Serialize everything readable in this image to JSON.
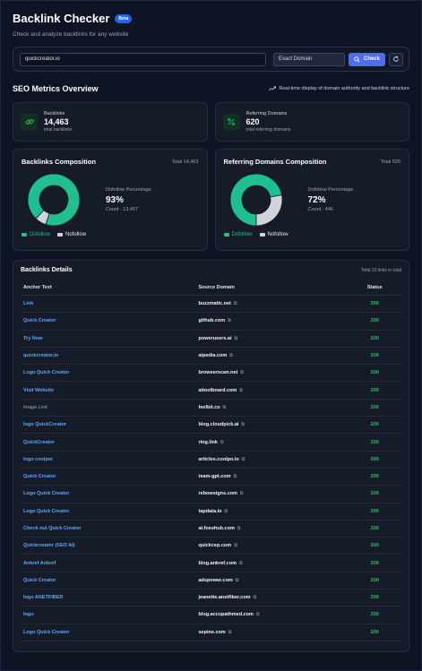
{
  "header": {
    "title": "Backlink Checker",
    "badge": "Beta",
    "subtitle": "Check and analyze backlinks for any website"
  },
  "search": {
    "url_value": "quickcreator.io",
    "mode_label": "Exact Domain",
    "check_label": "Check"
  },
  "overview": {
    "title": "SEO Metrics Overview",
    "note": "Real-time display of domain authority and backlink structure"
  },
  "metrics": [
    {
      "label": "Backlinks",
      "value": "14,463",
      "sub": "total backlinks",
      "icon": "link-icon"
    },
    {
      "label": "Referring Domains",
      "value": "620",
      "sub": "total referring domains",
      "icon": "percent-icon"
    }
  ],
  "charts": [
    {
      "title": "Backlinks Composition",
      "total": "Total 14,463",
      "pct_label": "Dofollow Percentage",
      "pct_value": "93%",
      "count": "Count : 13,457",
      "dofollow_fraction": 0.93
    },
    {
      "title": "Referring Domains Composition",
      "total": "Total 620",
      "pct_label": "Dofollow Percentage",
      "pct_value": "72%",
      "count": "Count : 446",
      "dofollow_fraction": 0.72
    }
  ],
  "legend": {
    "dofollow": "Dofollow",
    "nofollow": "Nofollow"
  },
  "colors": {
    "dofollow": "#1fbf8f",
    "nofollow": "#d1d5db",
    "accent": "#4f6bf0",
    "status": "#22c55e"
  },
  "details": {
    "title": "Backlinks Details",
    "total": "Total 20 links in total",
    "columns": [
      "Anchor Text",
      "Source Domain",
      "Status"
    ],
    "rows": [
      {
        "anchor": "Link",
        "domain": "buzzmatic.net",
        "status": "200"
      },
      {
        "anchor": "Quick Creator",
        "domain": "github.com",
        "status": "200"
      },
      {
        "anchor": "Try Now",
        "domain": "powerusers.ai",
        "status": "200"
      },
      {
        "anchor": "quickcreator.io",
        "domain": "aipedia.com",
        "status": "200"
      },
      {
        "anchor": "Logo Quick Creator",
        "domain": "browserscan.net",
        "status": "200"
      },
      {
        "anchor": "Visit Website",
        "domain": "aitoolboard.com",
        "status": "200"
      },
      {
        "anchor": "Image Link",
        "domain": "feelbit.co",
        "status": "200",
        "muted": true
      },
      {
        "anchor": "logo QuickCreator",
        "domain": "blog.cloudpick.ai",
        "status": "200"
      },
      {
        "anchor": "QuickCreator",
        "domain": "ring.link",
        "status": "200"
      },
      {
        "anchor": "logo coolpoi",
        "domain": "articles.coolpo.io",
        "status": "200"
      },
      {
        "anchor": "Quick Creator",
        "domain": "team-gpt.com",
        "status": "200"
      },
      {
        "anchor": "Logo Quick Creator",
        "domain": "rebowsigns.com",
        "status": "200"
      },
      {
        "anchor": "Logo Quick Creator",
        "domain": "tapdata.io",
        "status": "200"
      },
      {
        "anchor": "Check out Quick Creator",
        "domain": "ai.fosshub.com",
        "status": "200"
      },
      {
        "anchor": "Quickcreator (SEO AI)",
        "domain": "quickcep.com",
        "status": "200"
      },
      {
        "anchor": "Ankref Ankref",
        "domain": "blog.ankref.com",
        "status": "200"
      },
      {
        "anchor": "Quick Creator",
        "domain": "adspower.com",
        "status": "200"
      },
      {
        "anchor": "logo ANETFIBER",
        "domain": "jeanette.anetfiber.com",
        "status": "200"
      },
      {
        "anchor": "logo",
        "domain": "blog.accupathmed.com",
        "status": "200"
      },
      {
        "anchor": "Logo Quick Creator",
        "domain": "sepine.com",
        "status": "200"
      }
    ]
  }
}
